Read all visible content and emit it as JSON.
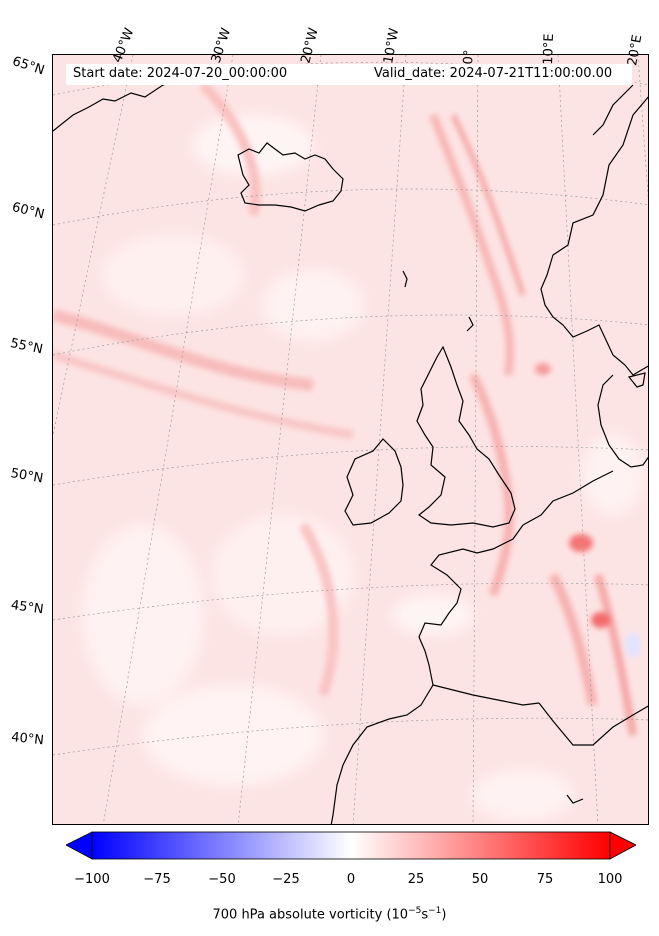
{
  "info": {
    "start_date": "Start date: 2024-07-20_00:00:00",
    "valid_date": "Valid_date: 2024-07-21T11:00:00.00"
  },
  "map": {
    "projection": "lambert-conformal",
    "region": "North-East Atlantic and Western Europe",
    "coastline_color": "#000000",
    "gridline_style": "dotted gray"
  },
  "longitude_labels": [
    "40°W",
    "30°W",
    "20°W",
    "10°W",
    "0°",
    "10°E",
    "20°E"
  ],
  "latitude_labels": [
    "65°N",
    "60°N",
    "55°N",
    "50°N",
    "45°N",
    "40°N"
  ],
  "colorbar": {
    "ticks": [
      "−100",
      "−75",
      "−50",
      "−25",
      "0",
      "25",
      "50",
      "75",
      "100"
    ],
    "range": [
      -100,
      100
    ],
    "label_main": "700 hPa absolute vorticity (10",
    "label_exp1": "−5",
    "label_mid": "s",
    "label_exp2": "−1",
    "label_end": ")",
    "colormap": "bwr",
    "color_min": "#0000ff",
    "color_mid": "#ffffff",
    "color_max": "#ff0000",
    "extend": "both"
  }
}
